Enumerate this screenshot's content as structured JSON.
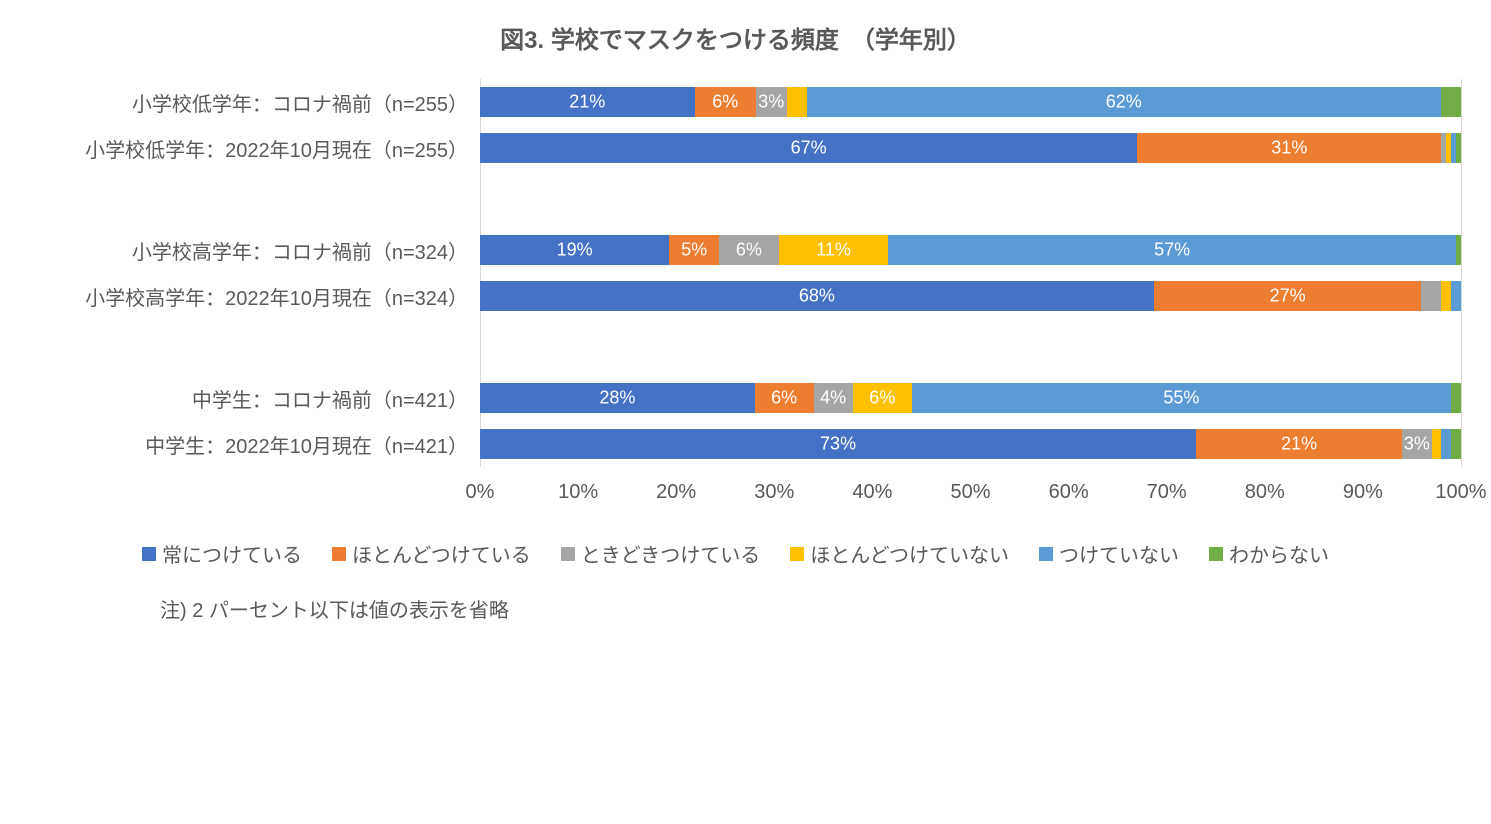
{
  "chart": {
    "type": "stacked-bar-horizontal",
    "title": "図3. 学校でマスクをつける頻度　（学年別）",
    "title_fontsize": 24,
    "title_color": "#595959",
    "label_fontsize": 20,
    "label_color": "#595959",
    "axis_fontsize": 20,
    "axis_color": "#595959",
    "bar_label_fontsize": 18,
    "bar_label_color": "#ffffff",
    "legend_fontsize": 20,
    "footnote_fontsize": 20,
    "background_color": "#ffffff",
    "grid_color": "#d9d9d9",
    "xlim": [
      0,
      100
    ],
    "xtick_step": 10,
    "xtick_suffix": "%",
    "label_threshold": 2,
    "series": [
      {
        "name": "常につけている",
        "color": "#4472c4"
      },
      {
        "name": "ほとんどつけている",
        "color": "#ed7d31"
      },
      {
        "name": "ときどきつけている",
        "color": "#a5a5a5"
      },
      {
        "name": "ほとんどつけていない",
        "color": "#ffc000"
      },
      {
        "name": "つけていない",
        "color": "#5b9bd5"
      },
      {
        "name": "わからない",
        "color": "#70ad47"
      }
    ],
    "groups": [
      {
        "rows": [
          {
            "label": "小学校低学年：コロナ禍前（n=255）",
            "values": [
              21,
              6,
              3,
              2,
              62,
              2
            ],
            "overflow": true
          },
          {
            "label": "小学校低学年：2022年10月現在（n=255）",
            "values": [
              67,
              31,
              0.5,
              0.5,
              0.5,
              0.5
            ]
          }
        ]
      },
      {
        "rows": [
          {
            "label": "小学校高学年：コロナ禍前（n=324）",
            "values": [
              19,
              5,
              6,
              11,
              57,
              0.5
            ],
            "overflow": true
          },
          {
            "label": "小学校高学年：2022年10月現在（n=324）",
            "values": [
              68,
              27,
              2,
              1,
              1,
              0
            ]
          }
        ]
      },
      {
        "rows": [
          {
            "label": "中学生：コロナ禍前（n=421）",
            "values": [
              28,
              6,
              4,
              6,
              55,
              1
            ]
          },
          {
            "label": "中学生：2022年10月現在（n=421）",
            "values": [
              73,
              21,
              3,
              1,
              1,
              1
            ]
          }
        ]
      }
    ],
    "footnote": "注) 2 パーセント以下は値の表示を省略"
  }
}
